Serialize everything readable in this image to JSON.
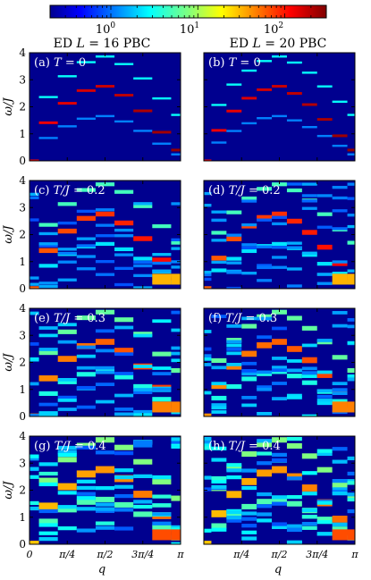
{
  "colorbar": {
    "scale": "log",
    "ticks": [
      {
        "base": "10",
        "exp": "0",
        "value": 1
      },
      {
        "base": "10",
        "exp": "1",
        "value": 10
      },
      {
        "base": "10",
        "exp": "2",
        "value": 100
      }
    ],
    "colormap": "jet"
  },
  "columns": [
    {
      "title": "ED L = 16 PBC",
      "title_main": "ED ",
      "title_italic": "L",
      "title_rest": " = 16 PBC",
      "n_q": 9
    },
    {
      "title": "ED L = 20 PBC",
      "title_main": "ED ",
      "title_italic": "L",
      "title_rest": " = 20 PBC",
      "n_q": 11
    }
  ],
  "rows": [
    {
      "T": 0.0,
      "label_left": "(a) T = 0",
      "label_right": "(b) T = 0",
      "lab_tag_left": "(a)",
      "lab_tag_right": "(b)",
      "lab_var": "T",
      "lab_val": " = 0"
    },
    {
      "T": 0.2,
      "label_left": "(c) T/J = 0.2",
      "label_right": "(d) T/J = 0.2",
      "lab_tag_left": "(c)",
      "lab_tag_right": "(d)",
      "lab_var": "T/J",
      "lab_val": " = 0.2"
    },
    {
      "T": 0.3,
      "label_left": "(e) T/J = 0.3",
      "label_right": "(f) T/J = 0.3",
      "lab_tag_left": "(e)",
      "lab_tag_right": "(f)",
      "lab_var": "T/J",
      "lab_val": " = 0.3"
    },
    {
      "T": 0.4,
      "label_left": "(g) T/J = 0.4",
      "label_right": "(h) T/J = 0.4",
      "lab_tag_left": "(g)",
      "lab_tag_right": "(h)",
      "lab_var": "T/J",
      "lab_val": " = 0.4"
    }
  ],
  "axes": {
    "ylabel": "ω/J",
    "xlabel": "q",
    "yticks": [
      "0",
      "1",
      "2",
      "3",
      "4"
    ],
    "ylim": [
      0,
      4
    ],
    "xticks": [
      {
        "label": "0",
        "value": 0
      },
      {
        "label": "π/4",
        "value": 0.25
      },
      {
        "label": "π/2",
        "value": 0.5
      },
      {
        "label": "3π/4",
        "value": 0.75
      },
      {
        "label": "π",
        "value": 1
      }
    ],
    "xlim_units": "π"
  },
  "chart_data": {
    "type": "heatmap",
    "title": "",
    "description_units": "intensity on log color scale",
    "x_quantity": "q (units of π)",
    "y_quantity": "ω/J",
    "dispersion_omega": [
      0,
      1.41,
      2.13,
      2.6,
      2.76,
      2.43,
      1.85,
      1.06,
      0.4
    ],
    "panels": [
      "a",
      "b",
      "c",
      "d",
      "e",
      "f",
      "g",
      "h"
    ],
    "temperatures": [
      0,
      0.2,
      0.3,
      0.4
    ]
  }
}
